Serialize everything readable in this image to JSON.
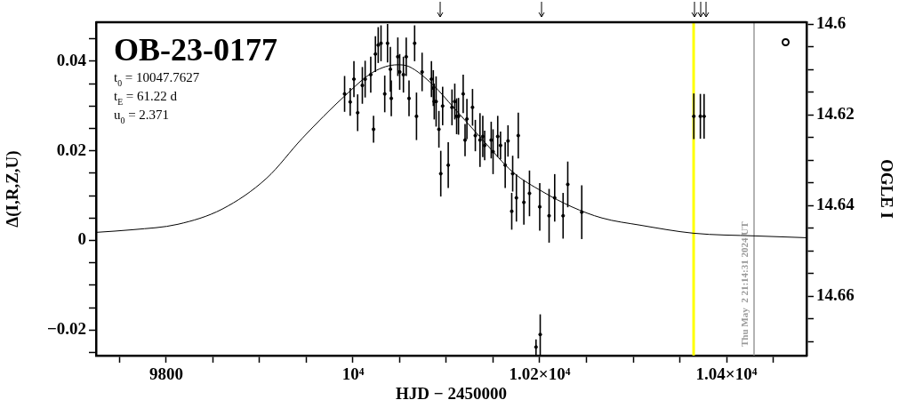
{
  "chart_data": {
    "type": "scatter",
    "title": "OB-23-0177",
    "xlabel": "HJD − 2450000",
    "ylabel": "Δ(I,R,Z,U)",
    "y2label": "OGLE I",
    "xlim": [
      9724.8,
      10485.7
    ],
    "ylim": [
      -0.0257,
      0.0487
    ],
    "y2lim": [
      14.6731,
      14.5996
    ],
    "xticks": [
      {
        "value": 9750,
        "label": null
      },
      {
        "value": 9800,
        "label": "9800"
      },
      {
        "value": 9850,
        "label": null
      },
      {
        "value": 9900,
        "label": null
      },
      {
        "value": 9950,
        "label": null
      },
      {
        "value": 10000,
        "label": "10⁴"
      },
      {
        "value": 10050,
        "label": null
      },
      {
        "value": 10100,
        "label": null
      },
      {
        "value": 10150,
        "label": null
      },
      {
        "value": 10200,
        "label": "1.02×10⁴"
      },
      {
        "value": 10250,
        "label": null
      },
      {
        "value": 10300,
        "label": null
      },
      {
        "value": 10350,
        "label": null
      },
      {
        "value": 10400,
        "label": "1.04×10⁴"
      },
      {
        "value": 10450,
        "label": null
      }
    ],
    "yticks": [
      {
        "value": -0.025,
        "label": null
      },
      {
        "value": -0.02,
        "label": "−0.02"
      },
      {
        "value": -0.015,
        "label": null
      },
      {
        "value": -0.01,
        "label": null
      },
      {
        "value": -0.005,
        "label": null
      },
      0,
      {
        "value": 0.005,
        "label": null
      },
      {
        "value": 0.01,
        "label": null
      },
      {
        "value": 0.015,
        "label": null
      },
      {
        "value": 0.02,
        "label": "0.02"
      },
      {
        "value": 0.025,
        "label": null
      },
      {
        "value": 0.03,
        "label": null
      },
      {
        "value": 0.035,
        "label": null
      },
      {
        "value": 0.04,
        "label": "0.04"
      },
      {
        "value": 0.045,
        "label": null
      }
    ],
    "y2ticks": [
      {
        "value": 14.6,
        "label": "14.6"
      },
      {
        "value": 14.605,
        "label": null
      },
      {
        "value": 14.61,
        "label": null
      },
      {
        "value": 14.615,
        "label": null
      },
      {
        "value": 14.62,
        "label": "14.62"
      },
      {
        "value": 14.625,
        "label": null
      },
      {
        "value": 14.63,
        "label": null
      },
      {
        "value": 14.635,
        "label": null
      },
      {
        "value": 14.64,
        "label": "14.64"
      },
      {
        "value": 14.645,
        "label": null
      },
      {
        "value": 14.65,
        "label": null
      },
      {
        "value": 14.655,
        "label": null
      },
      {
        "value": 14.66,
        "label": "14.66"
      },
      {
        "value": 14.665,
        "label": null
      },
      {
        "value": 14.67,
        "label": null
      }
    ],
    "grid": false,
    "legend": false,
    "series": [
      {
        "type": "scatter",
        "color": "#000000",
        "marker": "circle",
        "x": [
          9991,
          9997,
          10001,
          10005,
          10010,
          10013,
          10019,
          10022,
          10024,
          10027,
          10030,
          10034,
          10037,
          10040,
          10041,
          10048,
          10050,
          10054,
          10057,
          10060,
          10066,
          10068,
          10074,
          10084,
          10086,
          10087,
          10089,
          10092,
          10094,
          10096,
          10102,
          10106,
          10109,
          10111,
          10113,
          10118,
          10120,
          10122,
          10128,
          10131,
          10136,
          10139,
          10141,
          10148,
          10150,
          10155,
          10158,
          10163,
          10166,
          10170,
          10171,
          10175,
          10177,
          10183,
          10189,
          10200,
          10210,
          10216,
          10225,
          10230,
          10245,
          10200.5,
          10196,
          10365,
          10372,
          10376
        ],
        "values": [
          0.0327,
          0.0309,
          0.036,
          0.0285,
          0.0346,
          0.036,
          0.037,
          0.0248,
          0.0416,
          0.0436,
          0.044,
          0.0327,
          0.044,
          0.0382,
          0.0317,
          0.041,
          0.0376,
          0.037,
          0.041,
          0.0317,
          0.044,
          0.0277,
          0.0376,
          0.036,
          0.034,
          0.031,
          0.031,
          0.0248,
          0.0149,
          0.03,
          0.0168,
          0.0297,
          0.031,
          0.0277,
          0.0277,
          0.0327,
          0.0224,
          0.0271,
          0.0297,
          0.0234,
          0.0224,
          0.0232,
          0.0212,
          0.0224,
          0.0198,
          0.0232,
          0.0212,
          0.0168,
          0.0222,
          0.0065,
          0.0149,
          0.0095,
          0.0234,
          0.0085,
          0.0105,
          0.0075,
          0.0055,
          0.0095,
          0.0055,
          0.0125,
          0.0063,
          -0.021,
          -0.0238,
          0.0277,
          0.0277,
          0.0277
        ],
        "errors": [
          0.004,
          0.0031,
          0.004,
          0.0041,
          0.0041,
          0.0041,
          0.004,
          0.003,
          0.004,
          0.004,
          0.004,
          0.0041,
          0.0043,
          0.005,
          0.004,
          0.0043,
          0.004,
          0.004,
          0.0043,
          0.004,
          0.004,
          0.0053,
          0.0043,
          0.004,
          0.004,
          0.004,
          0.0056,
          0.0041,
          0.0051,
          0.0043,
          0.0051,
          0.004,
          0.004,
          0.004,
          0.0041,
          0.0043,
          0.0036,
          0.0045,
          0.0041,
          0.0035,
          0.006,
          0.0046,
          0.0033,
          0.0041,
          0.005,
          0.0046,
          0.0031,
          0.0051,
          0.0035,
          0.0041,
          0.004,
          0.0053,
          0.0051,
          0.005,
          0.0051,
          0.0053,
          0.006,
          0.0053,
          0.0051,
          0.0051,
          0.006,
          0.0045,
          0.0017,
          0.0051,
          0.005,
          0.005
        ]
      },
      {
        "type": "line",
        "color": "#000000",
        "marker": "none",
        "x": [
          9724.8,
          9764.8,
          9812.4,
          9860,
          9907.6,
          9945.7,
          9991.4,
          10021.9,
          10047.6,
          10060,
          10085.7,
          10107.6,
          10139,
          10171.4,
          10202.9,
          10234.3,
          10266.7,
          10307.6,
          10364.8,
          10431.4,
          10485.7
        ],
        "values": [
          0.0018,
          0.0024,
          0.0036,
          0.007,
          0.0139,
          0.0228,
          0.0323,
          0.0376,
          0.0392,
          0.0388,
          0.0347,
          0.0297,
          0.0224,
          0.0152,
          0.0109,
          0.0075,
          0.005,
          0.0034,
          0.0016,
          0.001,
          0.0006
        ]
      }
    ],
    "ref_lines": [
      {
        "axis": "x",
        "value": 10364.8,
        "color": "#ffff00"
      },
      {
        "axis": "x",
        "value": 10429.5,
        "color": "#999999"
      }
    ],
    "annotations": [
      "t$_{0}$ = 10047.7627",
      "t$_{E}$ = 61.22 d",
      "u$_{0}$ = 2.371",
      "Thu May  2 21:14:31 2024 UT"
    ]
  }
}
